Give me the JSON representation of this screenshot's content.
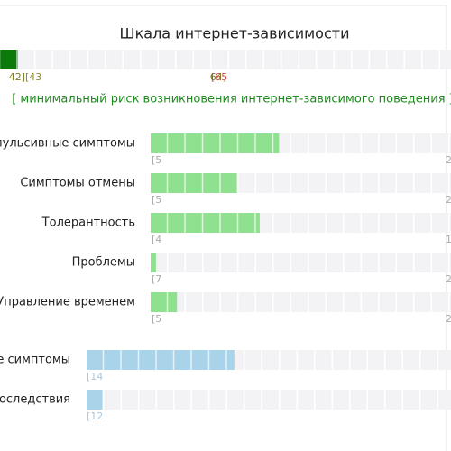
{
  "title": "Шкала интернет-зависимости",
  "total_bar": {
    "value": 2,
    "labels": [
      "42]",
      "[43",
      "64]",
      "[65"
    ]
  },
  "verdict": "[ минимальный риск возникновения интернет-зависимого поведения ]",
  "rows": [
    {
      "label": "пульсивные симптомы",
      "value": 7.3,
      "min_label": "[5",
      "max_label": "2"
    },
    {
      "label": "Симптомы отмены",
      "value": 4.9,
      "min_label": "[5",
      "max_label": "2"
    },
    {
      "label": "Толерантность",
      "value": 6.2,
      "min_label": "[4",
      "max_label": "1"
    },
    {
      "label": "Проблемы",
      "value": 0.3,
      "min_label": "[7",
      "max_label": "2"
    },
    {
      "label": "Управление временем",
      "value": 1.5,
      "min_label": "[5",
      "max_label": "2"
    }
  ],
  "groups": [
    {
      "label": "е симптомы",
      "value": 8.4,
      "min_label": "[14"
    },
    {
      "label": "последствия",
      "value": 0.9,
      "min_label": "[12"
    }
  ]
}
